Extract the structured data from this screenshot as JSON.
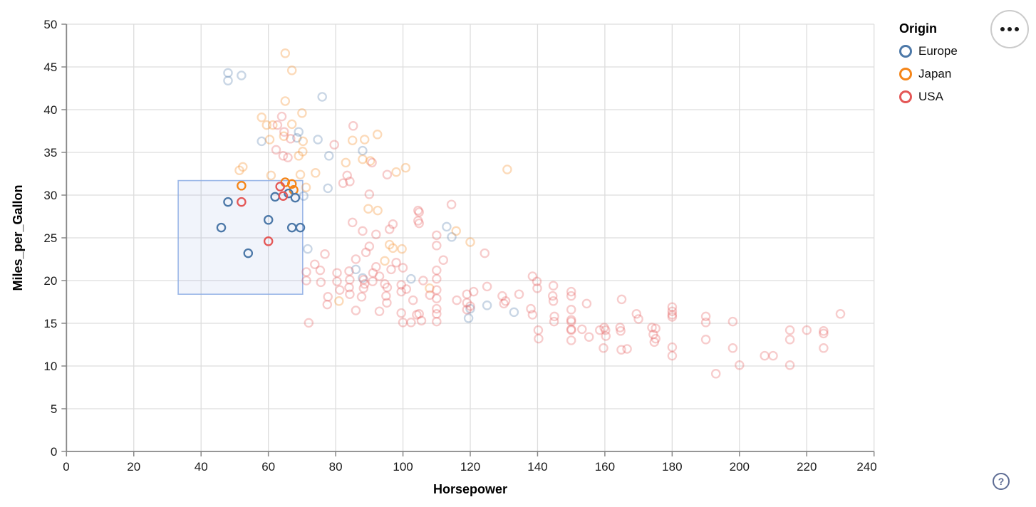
{
  "controls": {
    "help_label": "?",
    "menu_icon": "ellipsis-icon"
  },
  "chart_data": {
    "type": "scatter",
    "title": "",
    "xlabel": "Horsepower",
    "ylabel": "Miles_per_Gallon",
    "x_axis": {
      "min": 0,
      "max": 240,
      "ticks": [
        0,
        20,
        40,
        60,
        80,
        100,
        120,
        140,
        160,
        180,
        200,
        220,
        240
      ],
      "grid": true
    },
    "y_axis": {
      "min": 0,
      "max": 50,
      "ticks": [
        0,
        5,
        10,
        15,
        20,
        25,
        30,
        35,
        40,
        45,
        50
      ],
      "grid": true
    },
    "legend": {
      "title": "Origin",
      "position": "top-right",
      "entries": [
        {
          "key": "E",
          "label": "Europe",
          "color": "#4c78a8"
        },
        {
          "key": "J",
          "label": "Japan",
          "color": "#f58518"
        },
        {
          "key": "U",
          "label": "USA",
          "color": "#e45756"
        }
      ]
    },
    "colors": {
      "grid": "#dddddd",
      "axis": "#888888",
      "brush_fill": "rgba(115,151,219,0.10)",
      "brush_stroke": "rgba(140,172,228,0.85)"
    },
    "unselected_opacity": 0.3,
    "brush_selection": {
      "hp_range": [
        33.2,
        70.2
      ],
      "mpg_range": [
        18.4,
        31.7
      ]
    },
    "points_format": [
      "horsepower",
      "miles_per_gallon",
      "origin",
      "selected"
    ],
    "points": [
      [
        52,
        31.1,
        "J",
        1
      ],
      [
        65,
        31.5,
        "J",
        1
      ],
      [
        67,
        31.3,
        "J",
        1
      ],
      [
        67.5,
        30.6,
        "J",
        1
      ],
      [
        48,
        29.2,
        "E",
        1
      ],
      [
        62,
        29.8,
        "E",
        1
      ],
      [
        66,
        30.2,
        "E",
        1
      ],
      [
        68,
        29.7,
        "E",
        1
      ],
      [
        60,
        27.1,
        "E",
        1
      ],
      [
        46,
        26.2,
        "E",
        1
      ],
      [
        67,
        26.2,
        "E",
        1
      ],
      [
        69.5,
        26.2,
        "E",
        1
      ],
      [
        54,
        23.2,
        "E",
        1
      ],
      [
        52,
        29.2,
        "U",
        1
      ],
      [
        63.5,
        31,
        "U",
        1
      ],
      [
        64.4,
        29.9,
        "U",
        1
      ],
      [
        60,
        24.6,
        "U",
        1
      ],
      [
        48,
        44.3,
        "E",
        0
      ],
      [
        52,
        44,
        "E",
        0
      ],
      [
        48,
        43.4,
        "E",
        0
      ],
      [
        76,
        41.5,
        "E",
        0
      ],
      [
        69,
        37.4,
        "E",
        0
      ],
      [
        58,
        36.3,
        "E",
        0
      ],
      [
        68.5,
        36.7,
        "E",
        0
      ],
      [
        74.7,
        36.5,
        "E",
        0
      ],
      [
        78,
        34.6,
        "E",
        0
      ],
      [
        88,
        35.2,
        "E",
        0
      ],
      [
        70.5,
        29.9,
        "E",
        0
      ],
      [
        77.7,
        30.8,
        "E",
        0
      ],
      [
        71.7,
        23.7,
        "E",
        0
      ],
      [
        86,
        21.3,
        "E",
        0
      ],
      [
        88,
        20.3,
        "E",
        0
      ],
      [
        102.4,
        20.2,
        "E",
        0
      ],
      [
        113,
        26.3,
        "E",
        0
      ],
      [
        114.5,
        25.1,
        "E",
        0
      ],
      [
        125,
        17.1,
        "E",
        0
      ],
      [
        133,
        16.3,
        "E",
        0
      ],
      [
        120,
        16.7,
        "E",
        0
      ],
      [
        119.5,
        15.6,
        "E",
        0
      ],
      [
        65,
        46.6,
        "J",
        0
      ],
      [
        67,
        44.6,
        "J",
        0
      ],
      [
        65,
        41,
        "J",
        0
      ],
      [
        70,
        39.6,
        "J",
        0
      ],
      [
        58,
        39.1,
        "J",
        0
      ],
      [
        59.5,
        38.2,
        "J",
        0
      ],
      [
        61.3,
        38.2,
        "J",
        0
      ],
      [
        67,
        38.3,
        "J",
        0
      ],
      [
        60.4,
        36.5,
        "J",
        0
      ],
      [
        64.6,
        36.9,
        "J",
        0
      ],
      [
        70.3,
        36.3,
        "J",
        0
      ],
      [
        85,
        36.4,
        "J",
        0
      ],
      [
        88.6,
        36.5,
        "J",
        0
      ],
      [
        92.4,
        37.1,
        "J",
        0
      ],
      [
        100.8,
        33.2,
        "J",
        0
      ],
      [
        52.4,
        33.3,
        "J",
        0
      ],
      [
        51.4,
        32.9,
        "J",
        0
      ],
      [
        60.8,
        32.3,
        "J",
        0
      ],
      [
        69.5,
        32.4,
        "J",
        0
      ],
      [
        74,
        32.6,
        "J",
        0
      ],
      [
        98,
        32.7,
        "J",
        0
      ],
      [
        131,
        33,
        "J",
        0
      ],
      [
        83,
        33.8,
        "J",
        0
      ],
      [
        88,
        34.2,
        "J",
        0
      ],
      [
        90.3,
        34,
        "J",
        0
      ],
      [
        69,
        34.6,
        "J",
        0
      ],
      [
        70.2,
        35.1,
        "J",
        0
      ],
      [
        89.7,
        28.4,
        "J",
        0
      ],
      [
        92.5,
        28.2,
        "J",
        0
      ],
      [
        96,
        24.2,
        "J",
        0
      ],
      [
        97,
        23.8,
        "J",
        0
      ],
      [
        94.6,
        22.3,
        "J",
        0
      ],
      [
        115.8,
        25.8,
        "J",
        0
      ],
      [
        120,
        24.5,
        "J",
        0
      ],
      [
        99.7,
        23.7,
        "J",
        0
      ],
      [
        107.9,
        19.1,
        "J",
        0
      ],
      [
        81,
        17.6,
        "J",
        0
      ],
      [
        71.2,
        30.9,
        "J",
        0
      ],
      [
        64,
        39.2,
        "U",
        0
      ],
      [
        62.7,
        38.2,
        "U",
        0
      ],
      [
        64.7,
        37.4,
        "U",
        0
      ],
      [
        66.6,
        36.6,
        "U",
        0
      ],
      [
        79.6,
        35.9,
        "U",
        0
      ],
      [
        85.2,
        38.1,
        "U",
        0
      ],
      [
        62.3,
        35.3,
        "U",
        0
      ],
      [
        64.4,
        34.6,
        "U",
        0
      ],
      [
        65.8,
        34.4,
        "U",
        0
      ],
      [
        90.8,
        33.8,
        "U",
        0
      ],
      [
        82.2,
        31.4,
        "U",
        0
      ],
      [
        84.2,
        31.6,
        "U",
        0
      ],
      [
        83.4,
        32.3,
        "U",
        0
      ],
      [
        95.3,
        32.4,
        "U",
        0
      ],
      [
        90,
        30.1,
        "U",
        0
      ],
      [
        104.5,
        28.2,
        "U",
        0
      ],
      [
        104.5,
        27,
        "U",
        0
      ],
      [
        114.4,
        28.9,
        "U",
        0
      ],
      [
        104.8,
        28,
        "U",
        0
      ],
      [
        104.8,
        26.7,
        "U",
        0
      ],
      [
        124.3,
        23.2,
        "U",
        0
      ],
      [
        125,
        19.3,
        "U",
        0
      ],
      [
        80.4,
        20.9,
        "U",
        0
      ],
      [
        80.4,
        19.9,
        "U",
        0
      ],
      [
        81.2,
        18.9,
        "U",
        0
      ],
      [
        84,
        21.1,
        "U",
        0
      ],
      [
        84.2,
        20.1,
        "U",
        0
      ],
      [
        84,
        19.2,
        "U",
        0
      ],
      [
        84.2,
        18.4,
        "U",
        0
      ],
      [
        88.3,
        20.1,
        "U",
        0
      ],
      [
        88.6,
        19.6,
        "U",
        0
      ],
      [
        88.3,
        19.1,
        "U",
        0
      ],
      [
        87.7,
        18.1,
        "U",
        0
      ],
      [
        91.1,
        20.9,
        "U",
        0
      ],
      [
        91,
        19.9,
        "U",
        0
      ],
      [
        94.6,
        19.6,
        "U",
        0
      ],
      [
        95.3,
        19.2,
        "U",
        0
      ],
      [
        95,
        18.2,
        "U",
        0
      ],
      [
        95.2,
        17.4,
        "U",
        0
      ],
      [
        99.5,
        19.5,
        "U",
        0
      ],
      [
        99.5,
        18.7,
        "U",
        0
      ],
      [
        99.5,
        16.2,
        "U",
        0
      ],
      [
        100,
        15.1,
        "U",
        0
      ],
      [
        104.8,
        16.1,
        "U",
        0
      ],
      [
        102.4,
        15.1,
        "U",
        0
      ],
      [
        104.1,
        16,
        "U",
        0
      ],
      [
        105.5,
        15.3,
        "U",
        0
      ],
      [
        110,
        25.3,
        "U",
        0
      ],
      [
        110,
        24.1,
        "U",
        0
      ],
      [
        110,
        21.2,
        "U",
        0
      ],
      [
        110,
        20.2,
        "U",
        0
      ],
      [
        110,
        18.9,
        "U",
        0
      ],
      [
        110,
        17.9,
        "U",
        0
      ],
      [
        110,
        16.7,
        "U",
        0
      ],
      [
        110,
        16.1,
        "U",
        0
      ],
      [
        110,
        15.2,
        "U",
        0
      ],
      [
        119,
        18.4,
        "U",
        0
      ],
      [
        119,
        17.4,
        "U",
        0
      ],
      [
        119,
        16.6,
        "U",
        0
      ],
      [
        121,
        18.7,
        "U",
        0
      ],
      [
        120,
        17,
        "U",
        0
      ],
      [
        129.5,
        18.2,
        "U",
        0
      ],
      [
        130,
        17.3,
        "U",
        0
      ],
      [
        130.5,
        17.6,
        "U",
        0
      ],
      [
        134.5,
        18.4,
        "U",
        0
      ],
      [
        138.5,
        20.5,
        "U",
        0
      ],
      [
        139.8,
        19.9,
        "U",
        0
      ],
      [
        139.9,
        19.1,
        "U",
        0
      ],
      [
        138,
        16.7,
        "U",
        0
      ],
      [
        138.5,
        16,
        "U",
        0
      ],
      [
        140.2,
        14.2,
        "U",
        0
      ],
      [
        140.3,
        13.2,
        "U",
        0
      ],
      [
        144.7,
        19.4,
        "U",
        0
      ],
      [
        144.5,
        18.2,
        "U",
        0
      ],
      [
        144.7,
        17.6,
        "U",
        0
      ],
      [
        145,
        15.8,
        "U",
        0
      ],
      [
        144.9,
        15.2,
        "U",
        0
      ],
      [
        150,
        18.7,
        "U",
        0
      ],
      [
        150,
        18.2,
        "U",
        0
      ],
      [
        150,
        16.6,
        "U",
        0
      ],
      [
        150,
        15.4,
        "U",
        0
      ],
      [
        150,
        15.2,
        "U",
        0
      ],
      [
        150,
        14.3,
        "U",
        0
      ],
      [
        150,
        14.2,
        "U",
        0
      ],
      [
        150,
        13,
        "U",
        0
      ],
      [
        153.2,
        14.3,
        "U",
        0
      ],
      [
        155.3,
        13.4,
        "U",
        0
      ],
      [
        158.5,
        14.2,
        "U",
        0
      ],
      [
        160.2,
        14.2,
        "U",
        0
      ],
      [
        154.6,
        17.3,
        "U",
        0
      ],
      [
        159.8,
        14.5,
        "U",
        0
      ],
      [
        160.3,
        13.5,
        "U",
        0
      ],
      [
        159.6,
        12.1,
        "U",
        0
      ],
      [
        164.5,
        14.5,
        "U",
        0
      ],
      [
        165,
        17.8,
        "U",
        0
      ],
      [
        164.7,
        14.1,
        "U",
        0
      ],
      [
        166.6,
        12,
        "U",
        0
      ],
      [
        164.9,
        11.9,
        "U",
        0
      ],
      [
        169.4,
        16.1,
        "U",
        0
      ],
      [
        170,
        15.5,
        "U",
        0
      ],
      [
        174,
        14.5,
        "U",
        0
      ],
      [
        174.4,
        13.7,
        "U",
        0
      ],
      [
        174.7,
        12.8,
        "U",
        0
      ],
      [
        175.1,
        14.4,
        "U",
        0
      ],
      [
        175.1,
        13.2,
        "U",
        0
      ],
      [
        180,
        16.9,
        "U",
        0
      ],
      [
        180,
        16.4,
        "U",
        0
      ],
      [
        180,
        16,
        "U",
        0
      ],
      [
        180,
        15.75,
        "U",
        0
      ],
      [
        180,
        12.2,
        "U",
        0
      ],
      [
        180,
        11.2,
        "U",
        0
      ],
      [
        190,
        15.8,
        "U",
        0
      ],
      [
        190,
        15.1,
        "U",
        0
      ],
      [
        190,
        13.1,
        "U",
        0
      ],
      [
        193,
        9.1,
        "U",
        0
      ],
      [
        198,
        15.2,
        "U",
        0
      ],
      [
        198,
        12.1,
        "U",
        0
      ],
      [
        200,
        10.1,
        "U",
        0
      ],
      [
        207.5,
        11.2,
        "U",
        0
      ],
      [
        210,
        11.2,
        "U",
        0
      ],
      [
        215,
        14.2,
        "U",
        0
      ],
      [
        215,
        13.1,
        "U",
        0
      ],
      [
        215,
        10.1,
        "U",
        0
      ],
      [
        220,
        14.2,
        "U",
        0
      ],
      [
        225,
        14.1,
        "U",
        0
      ],
      [
        225,
        13.8,
        "U",
        0
      ],
      [
        225,
        12.1,
        "U",
        0
      ],
      [
        230,
        16.1,
        "U",
        0
      ],
      [
        72,
        15.05,
        "U",
        0
      ],
      [
        71.3,
        21,
        "U",
        0
      ],
      [
        71.3,
        20,
        "U",
        0
      ],
      [
        73.8,
        21.9,
        "U",
        0
      ],
      [
        75.4,
        21.2,
        "U",
        0
      ],
      [
        75.6,
        19.8,
        "U",
        0
      ],
      [
        76.8,
        23.1,
        "U",
        0
      ],
      [
        77.7,
        18.1,
        "U",
        0
      ],
      [
        77.5,
        17.2,
        "U",
        0
      ],
      [
        86,
        22.5,
        "U",
        0
      ],
      [
        89,
        23.3,
        "U",
        0
      ],
      [
        92,
        21.6,
        "U",
        0
      ],
      [
        93,
        20.5,
        "U",
        0
      ],
      [
        96.5,
        21.3,
        "U",
        0
      ],
      [
        98,
        22.1,
        "U",
        0
      ],
      [
        101,
        19,
        "U",
        0
      ],
      [
        103,
        17.7,
        "U",
        0
      ],
      [
        96,
        26,
        "U",
        0
      ],
      [
        92,
        25.4,
        "U",
        0
      ],
      [
        88,
        25.8,
        "U",
        0
      ],
      [
        85,
        26.8,
        "U",
        0
      ],
      [
        90,
        24,
        "U",
        0
      ],
      [
        97,
        26.6,
        "U",
        0
      ],
      [
        100,
        21.5,
        "U",
        0
      ],
      [
        106,
        20,
        "U",
        0
      ],
      [
        108,
        18.3,
        "U",
        0
      ],
      [
        112,
        22.4,
        "U",
        0
      ],
      [
        116,
        17.7,
        "U",
        0
      ],
      [
        86,
        16.5,
        "U",
        0
      ],
      [
        93,
        16.4,
        "U",
        0
      ]
    ]
  }
}
